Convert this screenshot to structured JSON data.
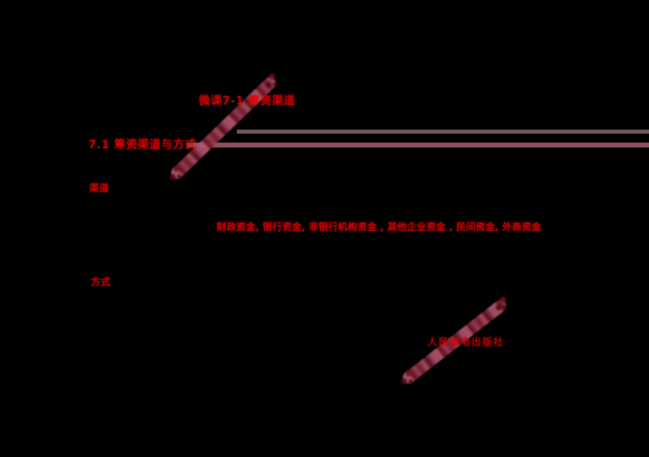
{
  "slide": {
    "background_color": "#000000",
    "title": "微课7-1 筹资渠道",
    "section_heading": "7.1 筹资渠道与方式",
    "sub_labels": {
      "first": "渠道",
      "second": "方式"
    },
    "channel_list": "财政资金, 银行资金, 非银行机构资金 , 其他企业资金 , 民间资金, 外商资金",
    "publisher": "人民邮电出版社",
    "colors": {
      "heading_red": "#e60000",
      "list_red": "#ee0000",
      "publisher_red": "#cc0000",
      "rule_upper": "#6f5660",
      "rule_lower": "#8f5160",
      "watermark_pink": "#ad5468",
      "watermark_dark": "#6e1220"
    }
  }
}
